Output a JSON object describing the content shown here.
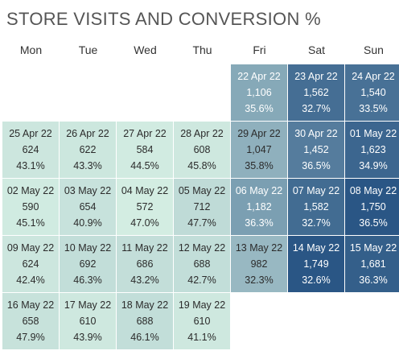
{
  "chart_data": {
    "type": "heatmap",
    "title": "STORE VISITS AND CONVERSION %",
    "days": [
      "Mon",
      "Tue",
      "Wed",
      "Thu",
      "Fri",
      "Sat",
      "Sun"
    ],
    "weeks": [
      [
        null,
        null,
        null,
        null,
        {
          "date": "22 Apr 22",
          "visits": "1,106",
          "conversion": "35.6%",
          "value": 1106
        },
        {
          "date": "23 Apr 22",
          "visits": "1,562",
          "conversion": "32.7%",
          "value": 1562
        },
        {
          "date": "24 Apr 22",
          "visits": "1,540",
          "conversion": "33.5%",
          "value": 1540
        }
      ],
      [
        {
          "date": "25 Apr 22",
          "visits": "624",
          "conversion": "43.1%",
          "value": 624
        },
        {
          "date": "26 Apr 22",
          "visits": "622",
          "conversion": "43.3%",
          "value": 622
        },
        {
          "date": "27 Apr 22",
          "visits": "584",
          "conversion": "44.5%",
          "value": 584
        },
        {
          "date": "28 Apr 22",
          "visits": "608",
          "conversion": "45.8%",
          "value": 608
        },
        {
          "date": "29 Apr 22",
          "visits": "1,047",
          "conversion": "35.8%",
          "value": 1047
        },
        {
          "date": "30 Apr 22",
          "visits": "1,452",
          "conversion": "36.5%",
          "value": 1452
        },
        {
          "date": "01 May 22",
          "visits": "1,623",
          "conversion": "34.9%",
          "value": 1623
        }
      ],
      [
        {
          "date": "02 May 22",
          "visits": "590",
          "conversion": "45.1%",
          "value": 590
        },
        {
          "date": "03 May 22",
          "visits": "654",
          "conversion": "40.9%",
          "value": 654
        },
        {
          "date": "04 May 22",
          "visits": "572",
          "conversion": "47.0%",
          "value": 572
        },
        {
          "date": "05 May 22",
          "visits": "712",
          "conversion": "47.7%",
          "value": 712
        },
        {
          "date": "06 May 22",
          "visits": "1,182",
          "conversion": "36.3%",
          "value": 1182
        },
        {
          "date": "07 May 22",
          "visits": "1,582",
          "conversion": "32.7%",
          "value": 1582
        },
        {
          "date": "08 May 22",
          "visits": "1,750",
          "conversion": "36.5%",
          "value": 1750
        }
      ],
      [
        {
          "date": "09 May 22",
          "visits": "624",
          "conversion": "42.4%",
          "value": 624
        },
        {
          "date": "10 May 22",
          "visits": "692",
          "conversion": "46.3%",
          "value": 692
        },
        {
          "date": "11 May 22",
          "visits": "686",
          "conversion": "43.2%",
          "value": 686
        },
        {
          "date": "12 May 22",
          "visits": "688",
          "conversion": "42.7%",
          "value": 688
        },
        {
          "date": "13 May 22",
          "visits": "982",
          "conversion": "32.3%",
          "value": 982
        },
        {
          "date": "14 May 22",
          "visits": "1,749",
          "conversion": "32.6%",
          "value": 1749
        },
        {
          "date": "15 May 22",
          "visits": "1,681",
          "conversion": "36.3%",
          "value": 1681
        }
      ],
      [
        {
          "date": "16 May 22",
          "visits": "658",
          "conversion": "47.9%",
          "value": 658
        },
        {
          "date": "17 May 22",
          "visits": "610",
          "conversion": "43.9%",
          "value": 610
        },
        {
          "date": "18 May 22",
          "visits": "688",
          "conversion": "46.1%",
          "value": 688
        },
        {
          "date": "19 May 22",
          "visits": "610",
          "conversion": "41.1%",
          "value": 610
        },
        null,
        null,
        null
      ]
    ],
    "color_scale": {
      "low": "#d3ede2",
      "high": "#2a5685"
    }
  }
}
